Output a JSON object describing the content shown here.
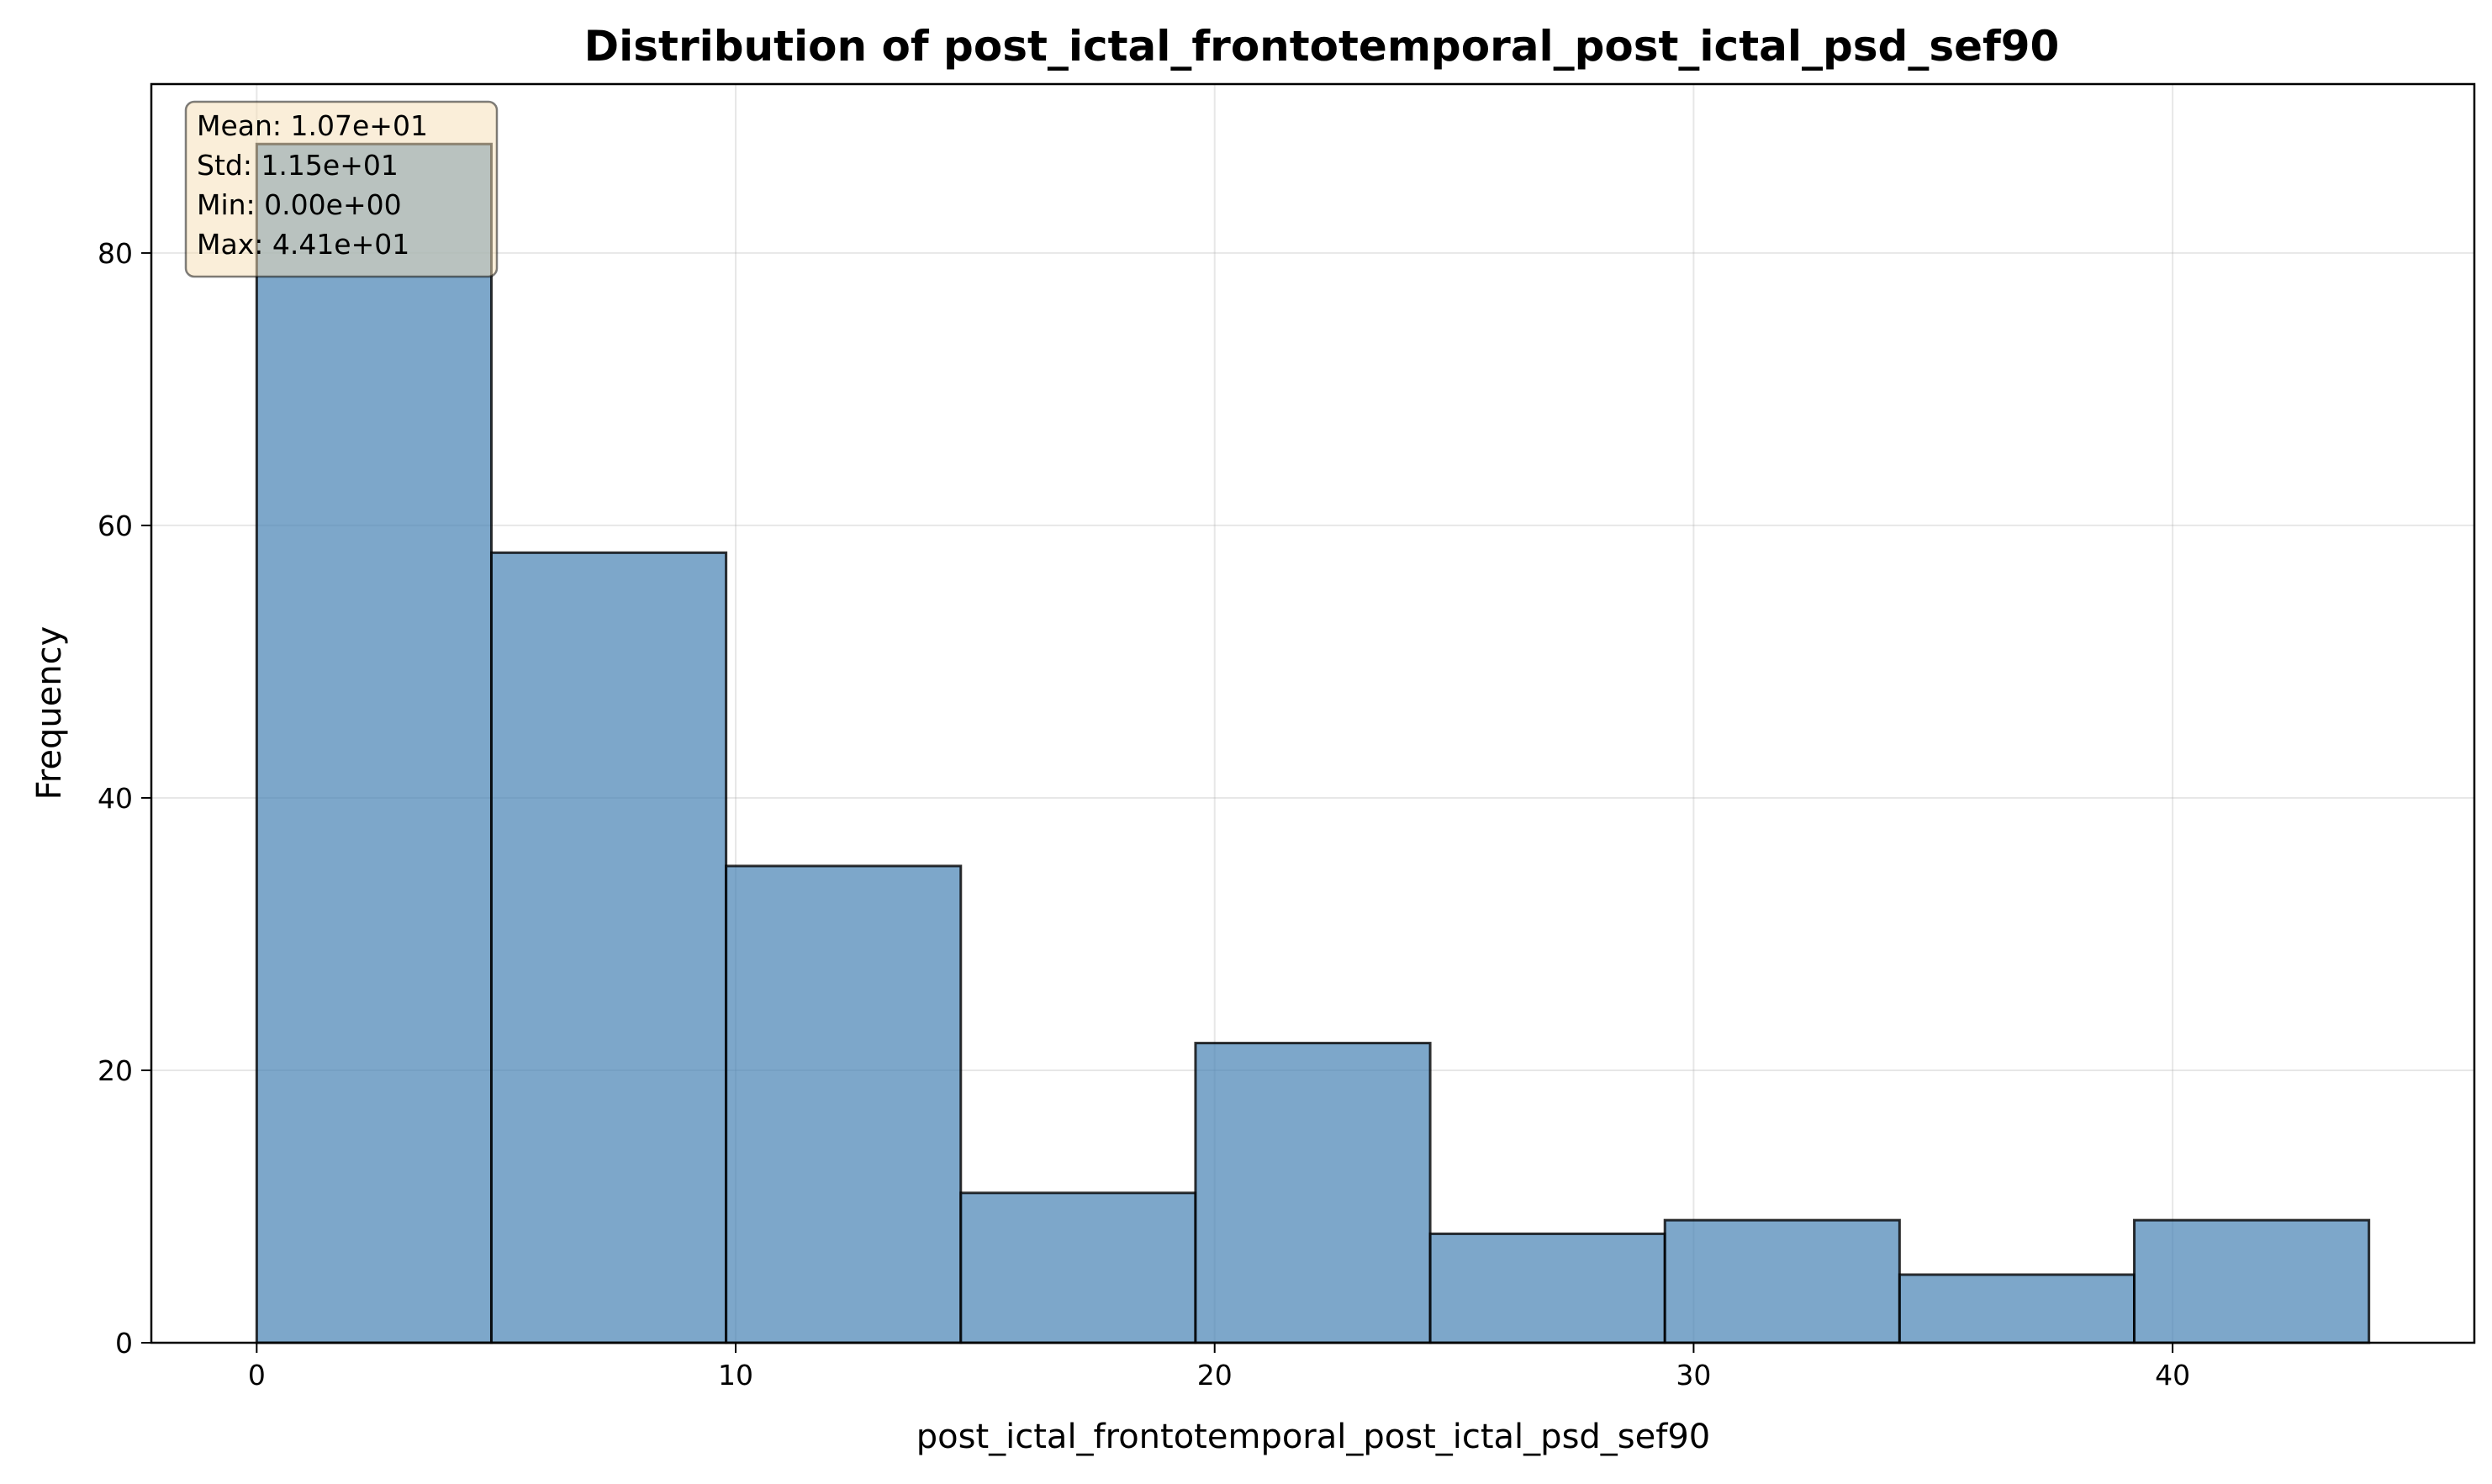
{
  "chart_data": {
    "type": "bar",
    "subtype": "histogram",
    "title": "Distribution of post_ictal_frontotemporal_post_ictal_psd_sef90",
    "xlabel": "post_ictal_frontotemporal_post_ictal_psd_sef90",
    "ylabel": "Frequency",
    "bin_edges": [
      0,
      4.9,
      9.8,
      14.7,
      19.6,
      24.5,
      29.4,
      34.3,
      39.2,
      44.1
    ],
    "values": [
      88,
      58,
      35,
      11,
      22,
      8,
      9,
      5,
      9
    ],
    "xlim": [
      -2.2,
      46.3
    ],
    "ylim": [
      0,
      92.4
    ],
    "xticks": [
      0,
      10,
      20,
      30,
      40
    ],
    "xtick_labels": [
      "0",
      "10",
      "20",
      "30",
      "40"
    ],
    "yticks": [
      0,
      20,
      40,
      60,
      80
    ],
    "ytick_labels": [
      "0",
      "20",
      "40",
      "60",
      "80"
    ],
    "grid": true,
    "bar_color": "#4682b4",
    "bar_edge_color": "#000000",
    "stats_box": {
      "lines": [
        "Mean: 1.07e+01",
        "Std: 1.15e+01",
        "Min: 0.00e+00",
        "Max: 4.41e+01"
      ],
      "placement": "top-left",
      "background": "#f5deb3"
    }
  }
}
